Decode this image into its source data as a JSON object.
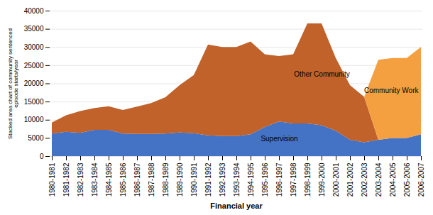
{
  "chart_data": {
    "type": "area",
    "stacked": true,
    "xlabel": "Financial year",
    "ylabel": "Stacked area chart of community sentenced\nepisode starts/year",
    "categories": [
      "1980-1981",
      "1981-1982",
      "1982-1983",
      "1983-1984",
      "1984-1985",
      "1985-1986",
      "1986-1987",
      "1987-1988",
      "1988-1989",
      "1989-1990",
      "1990-1991",
      "1991-1992",
      "1992-1993",
      "1993-1994",
      "1994-1995",
      "1995-1996",
      "1996-1997",
      "1997-1998",
      "1998-1999",
      "1999-2000",
      "2000-2001",
      "2001-2002",
      "2002-2003",
      "2003-2004",
      "2004-2005",
      "2005-2006",
      "2006-2007"
    ],
    "series": [
      {
        "name": "Supervision",
        "color": "#4472C4",
        "values": [
          6200,
          6700,
          6400,
          7200,
          7200,
          6200,
          6100,
          6100,
          6200,
          6500,
          6300,
          5700,
          5500,
          5500,
          6000,
          8000,
          9500,
          9000,
          9000,
          8500,
          7000,
          4500,
          3800,
          4500,
          5000,
          5000,
          6000
        ]
      },
      {
        "name": "Other Community",
        "color": "#C0622A",
        "values": [
          3000,
          4500,
          6000,
          6000,
          6500,
          6500,
          7500,
          8500,
          10000,
          13000,
          16000,
          25000,
          24500,
          24500,
          25500,
          20000,
          18000,
          19000,
          27500,
          28000,
          20000,
          15000,
          12500,
          0,
          0,
          0,
          0
        ]
      },
      {
        "name": "Community Work",
        "color": "#F5A040",
        "values": [
          0,
          0,
          0,
          0,
          0,
          0,
          0,
          0,
          0,
          0,
          0,
          0,
          0,
          0,
          0,
          0,
          0,
          0,
          0,
          0,
          0,
          0,
          0,
          22000,
          22000,
          22000,
          24000
        ]
      }
    ],
    "annotations": [
      "Supervision",
      "Other Community",
      "Community Work"
    ],
    "ylim": [
      0,
      40000
    ],
    "yticks": [
      0,
      5000,
      10000,
      15000,
      20000,
      25000,
      30000,
      35000,
      40000
    ],
    "grid": true
  }
}
